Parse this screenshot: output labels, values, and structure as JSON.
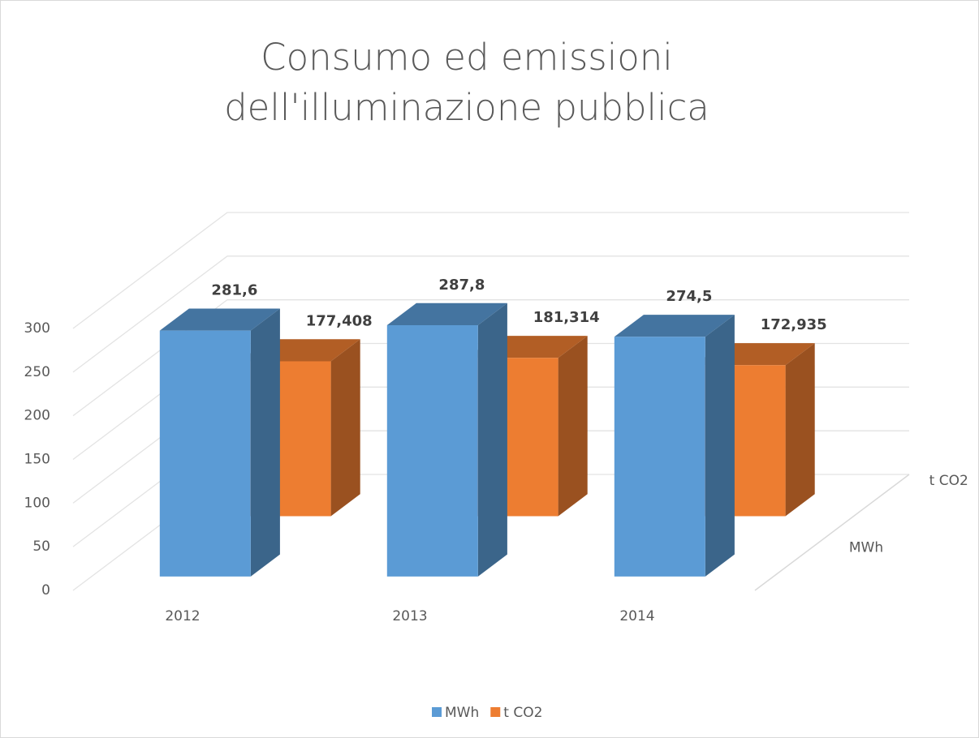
{
  "chart_data": {
    "type": "bar3d",
    "title": "Consumo ed emissioni dell'illuminazione pubblica",
    "categories": [
      "2012",
      "2013",
      "2014"
    ],
    "series": [
      {
        "name": "MWh",
        "color": "#5b9bd5",
        "values": [
          281.6,
          287.8,
          274.5
        ],
        "value_labels": [
          "281,6",
          "287,8",
          "274,5"
        ]
      },
      {
        "name": "t CO2",
        "color": "#ed7d31",
        "values": [
          177.408,
          181.314,
          172.935
        ],
        "value_labels": [
          "177,408",
          "181,314",
          "172,935"
        ]
      }
    ],
    "ylim": [
      0,
      300
    ],
    "yticks": [
      0,
      50,
      100,
      150,
      200,
      250,
      300
    ],
    "grid": true,
    "legend": "bottom"
  }
}
